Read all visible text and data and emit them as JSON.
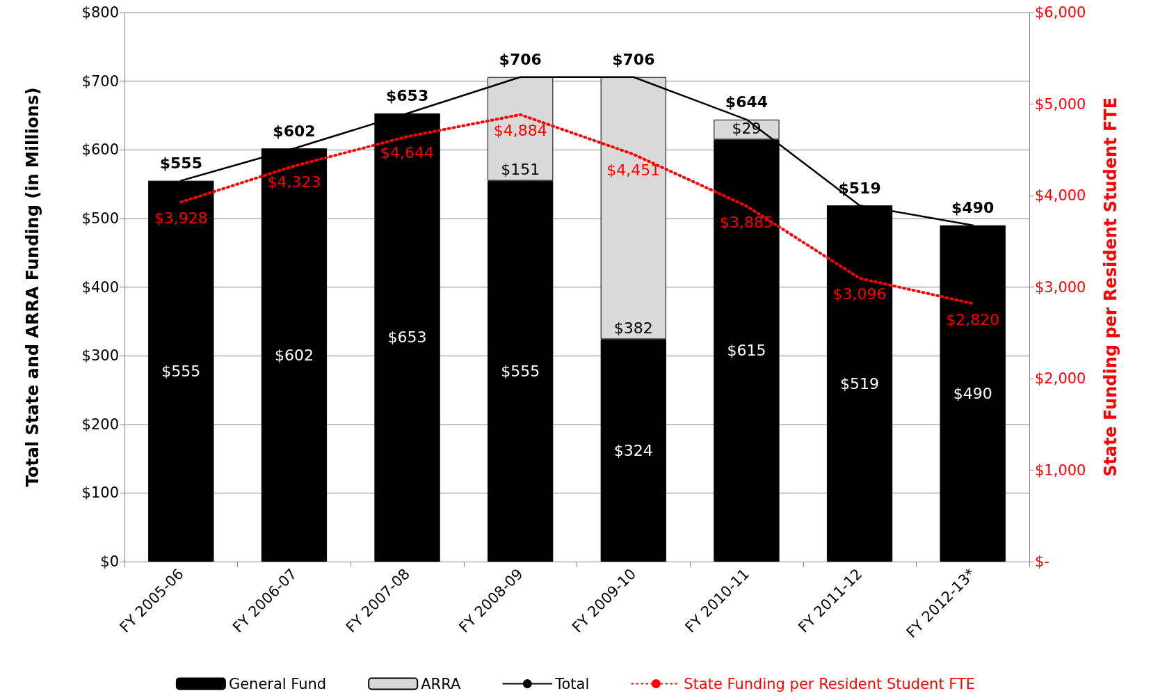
{
  "chart_data": {
    "type": "bar",
    "stacked": true,
    "grid": "y",
    "legend": "bottom",
    "ylabel": "Total State and ARRA Funding (in Millions)",
    "y2label": "State Funding per Resident Student FTE",
    "categories": [
      "FY 2005-06",
      "FY 2006-07",
      "FY 2007-08",
      "FY 2008-09",
      "FY 2009-10",
      "FY 2010-11",
      "FY 2011-12",
      "FY 2012-13*"
    ],
    "ylim": [
      0,
      800
    ],
    "yticks": [
      {
        "value": 0,
        "label": "$0"
      },
      {
        "value": 100,
        "label": "$100"
      },
      {
        "value": 200,
        "label": "$200"
      },
      {
        "value": 300,
        "label": "$300"
      },
      {
        "value": 400,
        "label": "$400"
      },
      {
        "value": 500,
        "label": "$500"
      },
      {
        "value": 600,
        "label": "$600"
      },
      {
        "value": 700,
        "label": "$700"
      },
      {
        "value": 800,
        "label": "$800"
      }
    ],
    "y2lim": [
      0,
      6000
    ],
    "y2ticks": [
      {
        "value": 0,
        "label": "$-"
      },
      {
        "value": 1000,
        "label": "$1,000"
      },
      {
        "value": 2000,
        "label": "$2,000"
      },
      {
        "value": 3000,
        "label": "$3,000"
      },
      {
        "value": 4000,
        "label": "$4,000"
      },
      {
        "value": 5000,
        "label": "$5,000"
      },
      {
        "value": 6000,
        "label": "$6,000"
      }
    ],
    "series": [
      {
        "name": "General Fund",
        "color": "#000000",
        "values": [
          555,
          602,
          653,
          555,
          324,
          615,
          519,
          490
        ],
        "value_labels": [
          "$555",
          "$602",
          "$653",
          "$555",
          "$324",
          "$615",
          "$519",
          "$490"
        ]
      },
      {
        "name": "ARRA",
        "color": "#d9d9d9",
        "values": [
          null,
          null,
          null,
          151,
          382,
          29,
          null,
          null
        ],
        "value_labels": [
          null,
          null,
          null,
          "$151",
          "$382",
          "$29",
          null,
          null
        ]
      },
      {
        "name": "Total",
        "type": "line",
        "color": "#000000",
        "marker": "none",
        "line_style": "solid",
        "values": [
          555,
          602,
          653,
          706,
          706,
          644,
          519,
          490
        ],
        "value_labels": [
          "$555",
          "$602",
          "$653",
          "$706",
          "$706",
          "$644",
          "$519",
          "$490"
        ]
      },
      {
        "name": "State Funding per Resident Student FTE",
        "type": "line",
        "axis": "y2",
        "color": "#ff0000",
        "marker": "none",
        "line_style": "dotted",
        "values": [
          3928,
          4323,
          4644,
          4884,
          4451,
          3885,
          3096,
          2820
        ],
        "value_labels": [
          "$3,928",
          "$4,323",
          "$4,644",
          "$4,884",
          "$4,451",
          "$3,885",
          "$3,096",
          "$2,820"
        ]
      }
    ]
  }
}
